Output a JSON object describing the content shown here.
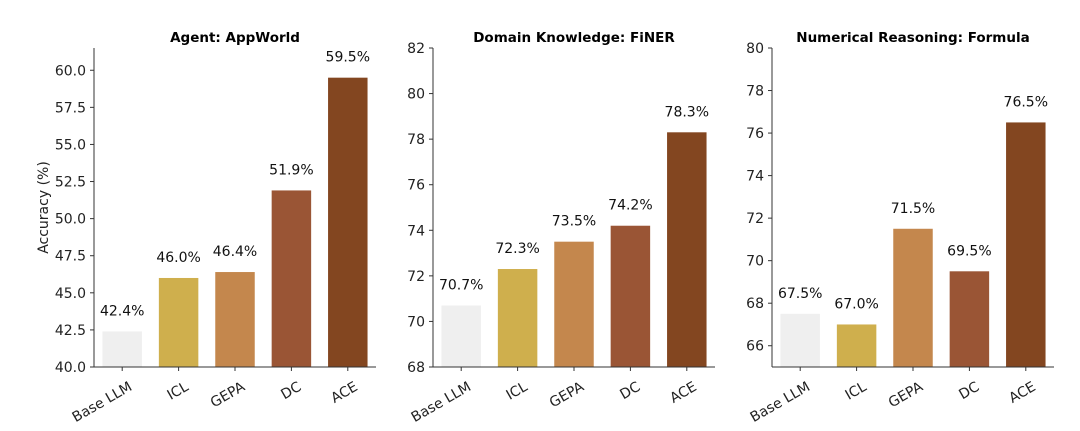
{
  "chart_data": [
    {
      "type": "bar",
      "title": "Agent: AppWorld",
      "ylabel": "Accuracy (%)",
      "categories": [
        "Base LLM",
        "ICL",
        "GEPA",
        "DC",
        "ACE"
      ],
      "values": [
        42.4,
        46.0,
        46.4,
        51.9,
        59.5
      ],
      "value_labels": [
        "42.4%",
        "46.0%",
        "46.4%",
        "51.9%",
        "59.5%"
      ],
      "ylim": [
        40,
        61.5
      ],
      "yticks": [
        40.0,
        42.5,
        45.0,
        47.5,
        50.0,
        52.5,
        55.0,
        57.5,
        60.0
      ],
      "ytick_labels": [
        "40.0",
        "42.5",
        "45.0",
        "47.5",
        "50.0",
        "52.5",
        "55.0",
        "57.5",
        "60.0"
      ],
      "grid": false
    },
    {
      "type": "bar",
      "title": "Domain Knowledge: FiNER",
      "ylabel": "",
      "categories": [
        "Base LLM",
        "ICL",
        "GEPA",
        "DC",
        "ACE"
      ],
      "values": [
        70.7,
        72.3,
        73.5,
        74.2,
        78.3
      ],
      "value_labels": [
        "70.7%",
        "72.3%",
        "73.5%",
        "74.2%",
        "78.3%"
      ],
      "ylim": [
        68,
        82
      ],
      "yticks": [
        68,
        70,
        72,
        74,
        76,
        78,
        80,
        82
      ],
      "ytick_labels": [
        "68",
        "70",
        "72",
        "74",
        "76",
        "78",
        "80",
        "82"
      ],
      "grid": false
    },
    {
      "type": "bar",
      "title": "Numerical Reasoning: Formula",
      "ylabel": "",
      "categories": [
        "Base LLM",
        "ICL",
        "GEPA",
        "DC",
        "ACE"
      ],
      "values": [
        67.5,
        67.0,
        71.5,
        69.5,
        76.5
      ],
      "value_labels": [
        "67.5%",
        "67.0%",
        "71.5%",
        "69.5%",
        "76.5%"
      ],
      "ylim": [
        65,
        80
      ],
      "yticks": [
        66,
        68,
        70,
        72,
        74,
        76,
        78,
        80
      ],
      "ytick_labels": [
        "66",
        "68",
        "70",
        "72",
        "74",
        "76",
        "78",
        "80"
      ],
      "grid": false
    }
  ],
  "colors": {
    "Base LLM": "#efefef",
    "ICL": "#cfaf4d",
    "GEPA": "#c4874d",
    "DC": "#9a5535",
    "ACE": "#834620"
  }
}
